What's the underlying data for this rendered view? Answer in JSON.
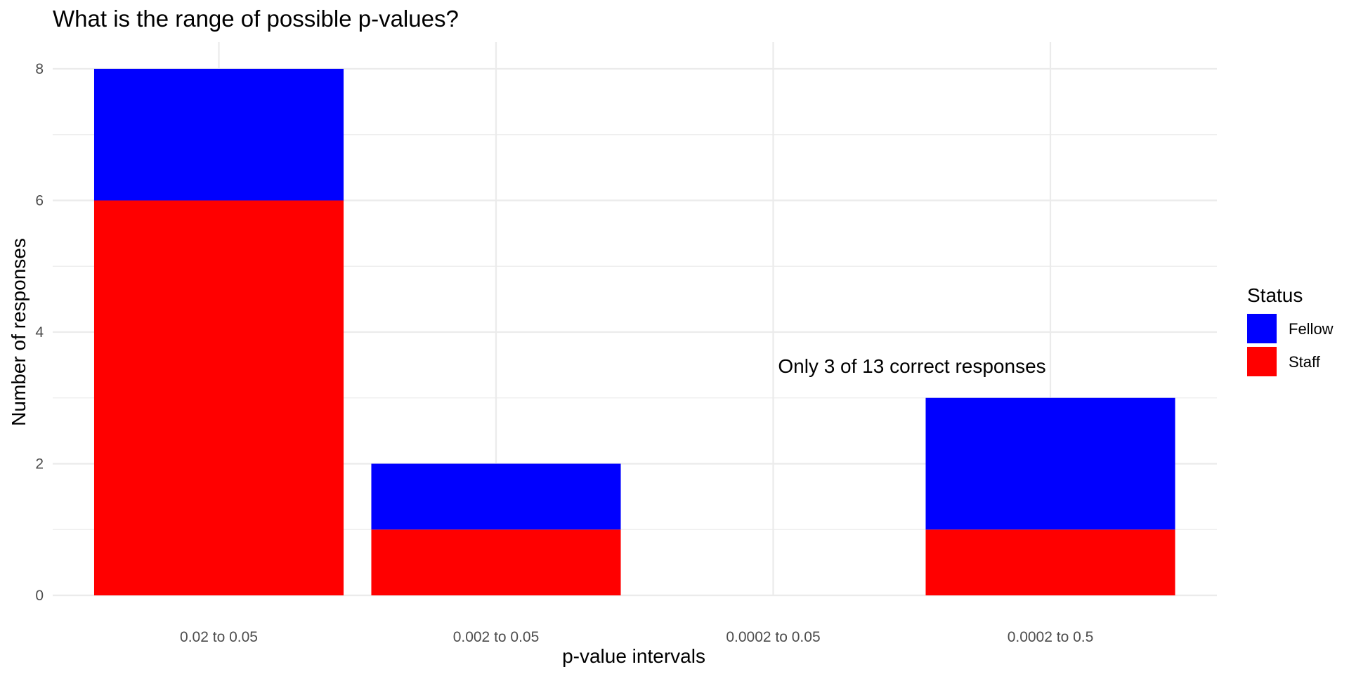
{
  "chart_data": {
    "type": "bar",
    "stacked": true,
    "title": "What is the range of possible p-values?",
    "xlabel": "p-value intervals",
    "ylabel": "Number of responses",
    "categories": [
      "0.02 to 0.05",
      "0.002 to 0.05",
      "0.0002 to 0.05",
      "0.0002 to 0.5"
    ],
    "series": [
      {
        "name": "Staff",
        "color": "#ff0000",
        "values": [
          6,
          1,
          0,
          1
        ]
      },
      {
        "name": "Fellow",
        "color": "#0000ff",
        "values": [
          2,
          1,
          0,
          2
        ]
      }
    ],
    "ylim": [
      0,
      8
    ],
    "yticks": [
      0,
      2,
      4,
      6,
      8
    ],
    "grid": true,
    "legend": {
      "title": "Status",
      "position": "right",
      "entries": [
        {
          "label": "Fellow",
          "color": "#0000ff"
        },
        {
          "label": "Staff",
          "color": "#ff0000"
        }
      ]
    },
    "annotation": {
      "text": "Only 3 of 13 correct responses",
      "x_category": "0.0002 to 0.5",
      "y": 3.5
    }
  }
}
